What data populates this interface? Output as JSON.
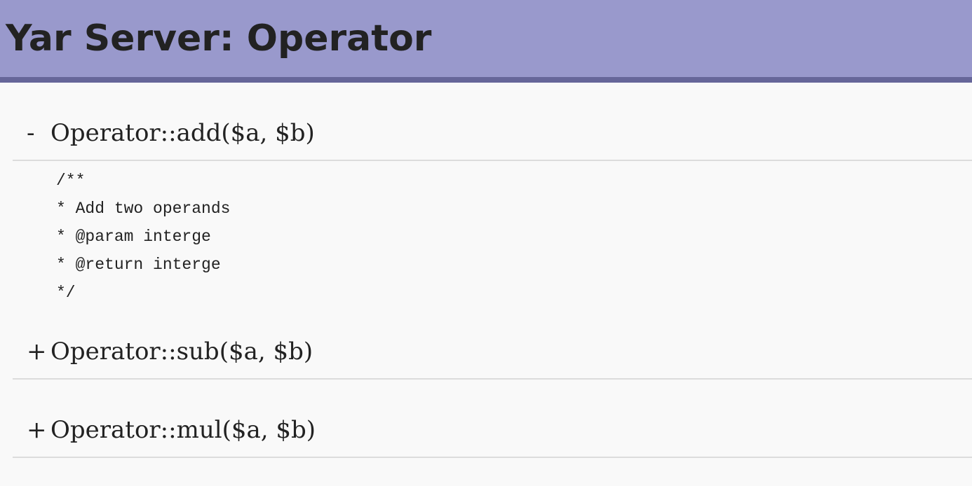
{
  "header": {
    "title": "Yar Server: Operator"
  },
  "methods": [
    {
      "toggle": "-",
      "signature": "Operator::add($a, $b)",
      "expanded": true,
      "doc": [
        "/**",
        "* Add two operands",
        "* @param interge",
        "* @return interge",
        "*/"
      ]
    },
    {
      "toggle": "+",
      "signature": "Operator::sub($a, $b)",
      "expanded": false
    },
    {
      "toggle": "+",
      "signature": "Operator::mul($a, $b)",
      "expanded": false
    }
  ],
  "colors": {
    "header_bg": "#9999cc",
    "header_border": "#666699",
    "page_bg": "#f9f9f9"
  }
}
